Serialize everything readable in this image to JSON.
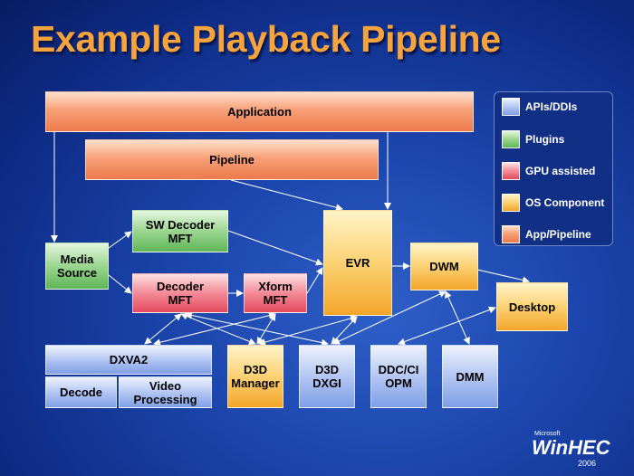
{
  "title": "Example Playback Pipeline",
  "nodes": [
    {
      "label": "Application"
    },
    {
      "label": "Pipeline"
    },
    {
      "label": "SW Decoder\nMFT"
    },
    {
      "label": "Media\nSource"
    },
    {
      "label": "Decoder\nMFT"
    },
    {
      "label": "Xform\nMFT"
    },
    {
      "label": "EVR"
    },
    {
      "label": "DWM"
    },
    {
      "label": "Desktop"
    },
    {
      "label": "DXVA2"
    },
    {
      "label": "Decode"
    },
    {
      "label": "Video\nProcessing"
    },
    {
      "label": "D3D\nManager"
    },
    {
      "label": "D3D\nDXGI"
    },
    {
      "label": "DDC/CI\nOPM"
    },
    {
      "label": "DMM"
    }
  ],
  "legend": [
    {
      "label": "APIs/DDIs"
    },
    {
      "label": "Plugins"
    },
    {
      "label": "GPU assisted"
    },
    {
      "label": "OS Component"
    },
    {
      "label": "App/Pipeline"
    }
  ],
  "logo": {
    "company": "Microsoft",
    "event": "WinHEC",
    "year": "2006"
  }
}
